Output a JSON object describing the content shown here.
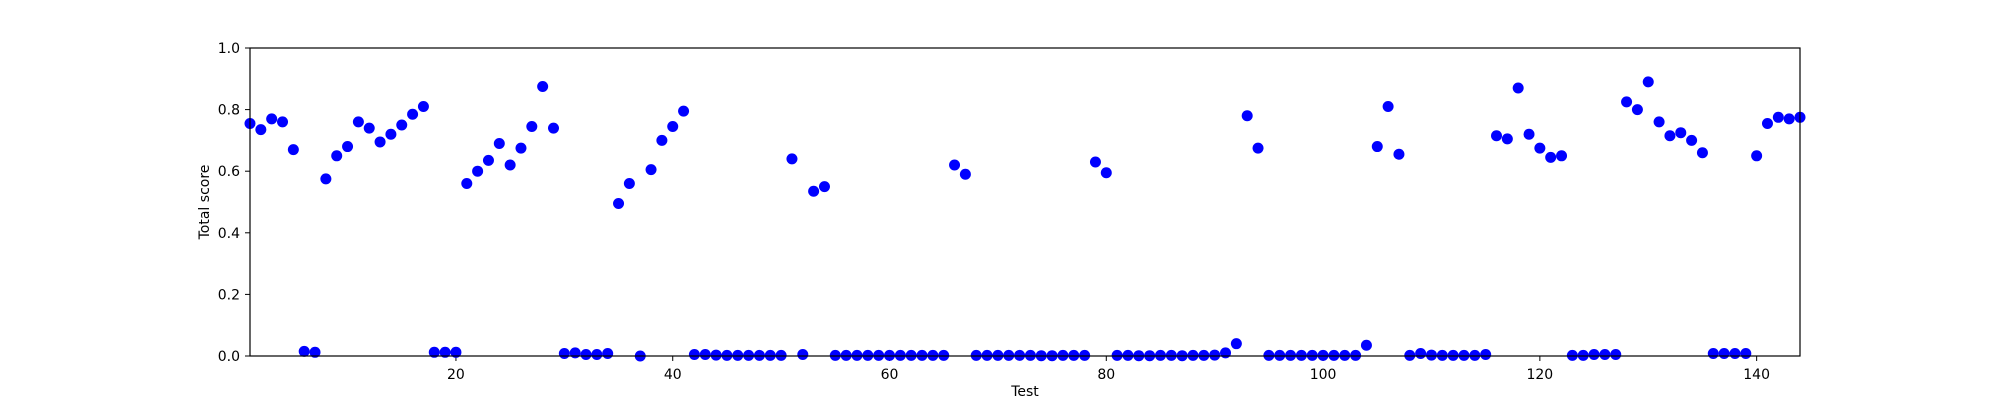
{
  "chart_data": {
    "type": "scatter",
    "title": "",
    "xlabel": "Test",
    "ylabel": "Total score",
    "xlim": [
      1,
      144
    ],
    "ylim": [
      0.0,
      1.0
    ],
    "xticks": [
      20,
      40,
      60,
      80,
      100,
      120,
      140
    ],
    "yticks": [
      0.0,
      0.2,
      0.4,
      0.6,
      0.8,
      1.0
    ],
    "xtick_labels": [
      "20",
      "40",
      "60",
      "80",
      "100",
      "120",
      "140"
    ],
    "ytick_labels": [
      "0.0",
      "0.2",
      "0.4",
      "0.6",
      "0.8",
      "1.0"
    ],
    "grid": false,
    "marker_color": "#0000ff",
    "x": [
      1,
      2,
      3,
      4,
      5,
      6,
      7,
      8,
      9,
      10,
      11,
      12,
      13,
      14,
      15,
      16,
      17,
      18,
      19,
      20,
      21,
      22,
      23,
      24,
      25,
      26,
      27,
      28,
      29,
      30,
      31,
      32,
      33,
      34,
      35,
      36,
      37,
      38,
      39,
      40,
      41,
      42,
      43,
      44,
      45,
      46,
      47,
      48,
      49,
      50,
      51,
      52,
      53,
      54,
      55,
      56,
      57,
      58,
      59,
      60,
      61,
      62,
      63,
      64,
      65,
      66,
      67,
      68,
      69,
      70,
      71,
      72,
      73,
      74,
      75,
      76,
      77,
      78,
      79,
      80,
      81,
      82,
      83,
      84,
      85,
      86,
      87,
      88,
      89,
      90,
      91,
      92,
      93,
      94,
      95,
      96,
      97,
      98,
      99,
      100,
      101,
      102,
      103,
      104,
      105,
      106,
      107,
      108,
      109,
      110,
      111,
      112,
      113,
      114,
      115,
      116,
      117,
      118,
      119,
      120,
      121,
      122,
      123,
      124,
      125,
      126,
      127,
      128,
      129,
      130,
      131,
      132,
      133,
      134,
      135,
      136,
      137,
      138,
      139,
      140,
      141,
      142,
      143,
      144
    ],
    "y": [
      0.755,
      0.735,
      0.77,
      0.76,
      0.67,
      0.015,
      0.012,
      0.575,
      0.65,
      0.68,
      0.76,
      0.74,
      0.695,
      0.72,
      0.75,
      0.785,
      0.81,
      0.012,
      0.012,
      0.012,
      0.56,
      0.6,
      0.635,
      0.69,
      0.62,
      0.675,
      0.745,
      0.875,
      0.74,
      0.008,
      0.01,
      0.005,
      0.005,
      0.008,
      0.495,
      0.56,
      0.0,
      0.605,
      0.7,
      0.745,
      0.795,
      0.005,
      0.005,
      0.003,
      0.002,
      0.002,
      0.002,
      0.002,
      0.002,
      0.002,
      0.64,
      0.005,
      0.535,
      0.55,
      0.002,
      0.002,
      0.002,
      0.002,
      0.002,
      0.002,
      0.002,
      0.002,
      0.002,
      0.002,
      0.002,
      0.62,
      0.59,
      0.002,
      0.002,
      0.002,
      0.002,
      0.002,
      0.002,
      0.001,
      0.001,
      0.002,
      0.002,
      0.002,
      0.63,
      0.595,
      0.002,
      0.002,
      0.001,
      0.001,
      0.002,
      0.002,
      0.001,
      0.002,
      0.002,
      0.003,
      0.01,
      0.04,
      0.78,
      0.675,
      0.002,
      0.002,
      0.002,
      0.002,
      0.002,
      0.002,
      0.002,
      0.002,
      0.002,
      0.035,
      0.68,
      0.81,
      0.655,
      0.002,
      0.008,
      0.003,
      0.002,
      0.002,
      0.002,
      0.002,
      0.005,
      0.715,
      0.705,
      0.87,
      0.72,
      0.675,
      0.645,
      0.65,
      0.002,
      0.002,
      0.005,
      0.005,
      0.005,
      0.825,
      0.8,
      0.89,
      0.76,
      0.715,
      0.725,
      0.7,
      0.66,
      0.008,
      0.008,
      0.008,
      0.008,
      0.65,
      0.755,
      0.775,
      0.77,
      0.775
    ]
  }
}
